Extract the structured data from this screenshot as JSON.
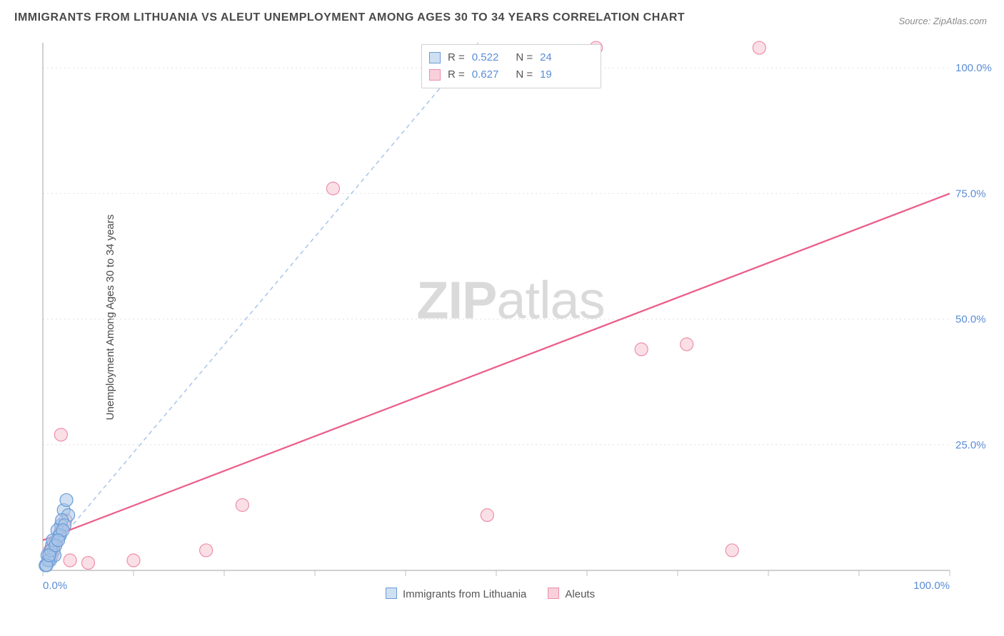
{
  "title": "IMMIGRANTS FROM LITHUANIA VS ALEUT UNEMPLOYMENT AMONG AGES 30 TO 34 YEARS CORRELATION CHART",
  "source": "Source: ZipAtlas.com",
  "y_axis_label": "Unemployment Among Ages 30 to 34 years",
  "watermark_left": "ZIP",
  "watermark_right": "atlas",
  "chart": {
    "type": "scatter",
    "xlim": [
      0,
      100
    ],
    "ylim": [
      0,
      105
    ],
    "x_ticks": [
      0,
      10,
      20,
      30,
      40,
      50,
      60,
      70,
      80,
      90,
      100
    ],
    "x_tick_labels": {
      "0": "0.0%",
      "100": "100.0%"
    },
    "y_ticks": [
      25,
      50,
      75,
      100
    ],
    "y_tick_labels": {
      "25": "25.0%",
      "50": "50.0%",
      "75": "75.0%",
      "100": "100.0%"
    },
    "background_color": "#ffffff",
    "grid_color": "#e0e0e0",
    "marker_radius": 9,
    "series": [
      {
        "name": "Immigrants from Lithuania",
        "color_fill": "#a8c5e8",
        "color_stroke": "#6a9bd6",
        "R": "0.522",
        "N": "24",
        "trend": {
          "x1": 0,
          "y1": 2,
          "x2": 48,
          "y2": 105,
          "dashed": true,
          "stroke": "#a8c5e8"
        },
        "points": [
          {
            "x": 0.5,
            "y": 3
          },
          {
            "x": 0.8,
            "y": 2
          },
          {
            "x": 0.3,
            "y": 1
          },
          {
            "x": 1.2,
            "y": 4
          },
          {
            "x": 1.5,
            "y": 6
          },
          {
            "x": 2.0,
            "y": 9
          },
          {
            "x": 1.0,
            "y": 5
          },
          {
            "x": 2.3,
            "y": 12
          },
          {
            "x": 1.8,
            "y": 7
          },
          {
            "x": 2.6,
            "y": 14
          },
          {
            "x": 1.3,
            "y": 3
          },
          {
            "x": 0.6,
            "y": 2
          },
          {
            "x": 2.8,
            "y": 11
          },
          {
            "x": 1.6,
            "y": 8
          },
          {
            "x": 0.9,
            "y": 4
          },
          {
            "x": 2.1,
            "y": 10
          },
          {
            "x": 1.1,
            "y": 6
          },
          {
            "x": 0.4,
            "y": 1
          },
          {
            "x": 2.4,
            "y": 9
          },
          {
            "x": 1.9,
            "y": 7
          },
          {
            "x": 0.7,
            "y": 3
          },
          {
            "x": 2.2,
            "y": 8
          },
          {
            "x": 1.4,
            "y": 5
          },
          {
            "x": 1.7,
            "y": 6
          }
        ]
      },
      {
        "name": "Aleuts",
        "color_fill": "#f8c4d4",
        "color_stroke": "#ec8fa9",
        "R": "0.627",
        "N": "19",
        "trend": {
          "x1": 0,
          "y1": 6,
          "x2": 100,
          "y2": 75,
          "dashed": false,
          "stroke": "#ec5f8a"
        },
        "points": [
          {
            "x": 1,
            "y": 3
          },
          {
            "x": 1.5,
            "y": 6
          },
          {
            "x": 2,
            "y": 8
          },
          {
            "x": 2,
            "y": 27
          },
          {
            "x": 3,
            "y": 2
          },
          {
            "x": 5,
            "y": 1.5
          },
          {
            "x": 10,
            "y": 2
          },
          {
            "x": 18,
            "y": 4
          },
          {
            "x": 22,
            "y": 13
          },
          {
            "x": 32,
            "y": 76
          },
          {
            "x": 49,
            "y": 11
          },
          {
            "x": 61,
            "y": 104
          },
          {
            "x": 66,
            "y": 44
          },
          {
            "x": 71,
            "y": 45
          },
          {
            "x": 76,
            "y": 4
          },
          {
            "x": 79,
            "y": 104
          },
          {
            "x": 2.5,
            "y": 10
          },
          {
            "x": 1.2,
            "y": 5
          },
          {
            "x": 0.8,
            "y": 4
          }
        ]
      }
    ]
  },
  "stats_box": {
    "rows": [
      {
        "swatch": "blue",
        "r_label": "R =",
        "r_val": "0.522",
        "n_label": "N =",
        "n_val": "24"
      },
      {
        "swatch": "pink",
        "r_label": "R =",
        "r_val": "0.627",
        "n_label": "N =",
        "n_val": "19"
      }
    ]
  },
  "bottom_legend": [
    {
      "swatch": "blue",
      "label": "Immigrants from Lithuania"
    },
    {
      "swatch": "pink",
      "label": "Aleuts"
    }
  ]
}
